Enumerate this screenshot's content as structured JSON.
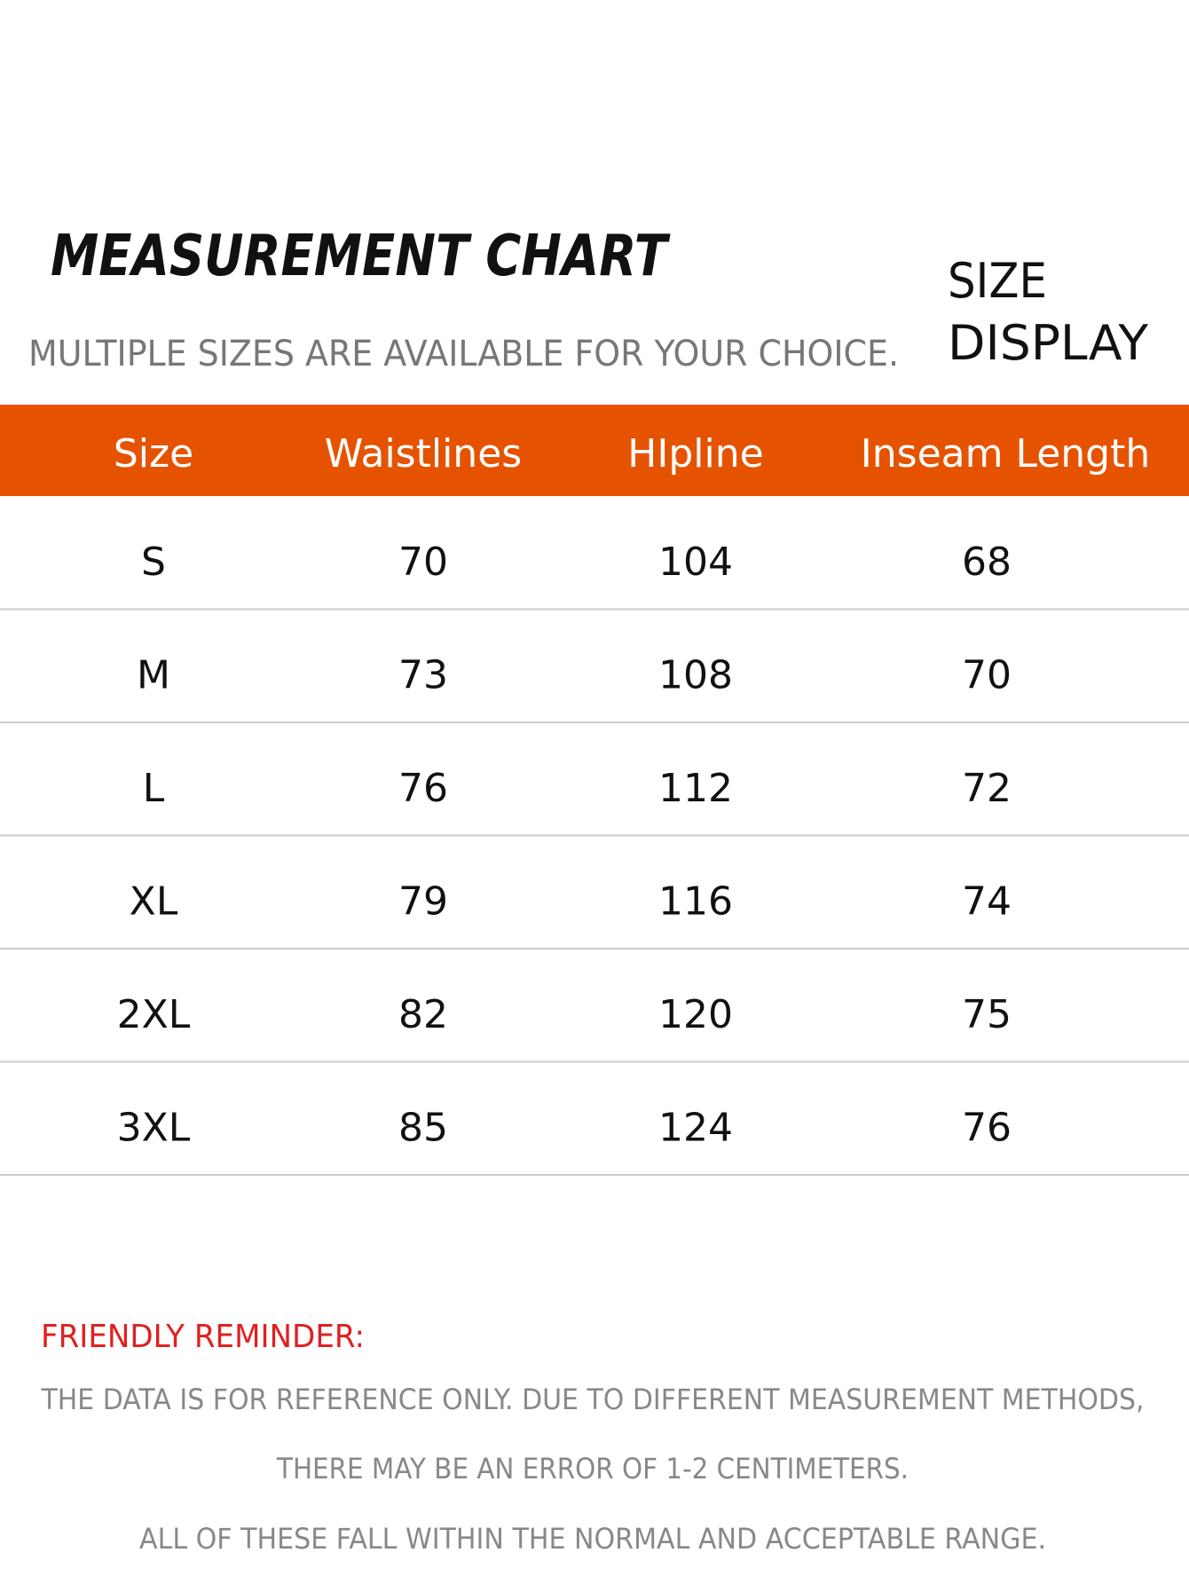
{
  "header": {
    "title": "MEASUREMENT CHART",
    "subtitle": "MULTIPLE SIZES ARE AVAILABLE FOR YOUR CHOICE.",
    "badge": [
      "SIZE",
      "DISPLAY"
    ]
  },
  "table": {
    "columns": [
      "Size",
      "Waistlines",
      "HIpline",
      "Inseam Length"
    ],
    "rows": [
      [
        "S",
        70,
        104,
        68
      ],
      [
        "M",
        73,
        108,
        70
      ],
      [
        "L",
        76,
        112,
        72
      ],
      [
        "XL",
        79,
        116,
        74
      ],
      [
        "2XL",
        82,
        120,
        75
      ],
      [
        "3XL",
        85,
        124,
        76
      ]
    ]
  },
  "reminder": {
    "title": "FRIENDLY REMINDER:",
    "lines": [
      "THE DATA IS FOR REFERENCE ONLY. DUE TO DIFFERENT MEASUREMENT METHODS,",
      "THERE MAY BE AN ERROR OF 1-2 CENTIMETERS.",
      "ALL OF THESE FALL WITHIN THE NORMAL AND ACCEPTABLE RANGE."
    ]
  }
}
